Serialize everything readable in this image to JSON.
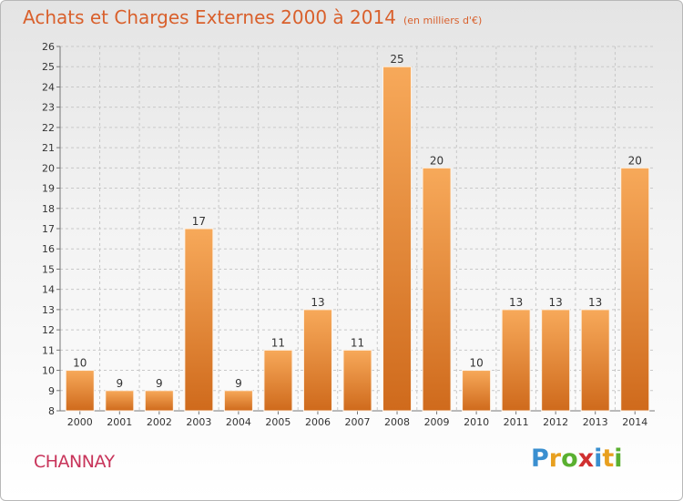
{
  "header": {
    "title": "Achats et Charges Externes 2000 à 2014",
    "unit_note": "(en milliers d'€)"
  },
  "place": "CHANNAY",
  "brand": {
    "letters": [
      "P",
      "r",
      "o",
      "x",
      "i",
      "t",
      "i"
    ],
    "colors": [
      "#3a8fd0",
      "#e8a020",
      "#5ab030",
      "#d03030",
      "#3a8fd0",
      "#e8a020",
      "#5ab030"
    ]
  },
  "colors": {
    "bar_light": "#f7a95a",
    "bar_dark": "#cf6a1c",
    "title": "#d9602c",
    "place": "#c8345a",
    "grid": "#c8c8c8"
  },
  "chart_data": {
    "type": "bar",
    "categories": [
      "2000",
      "2001",
      "2002",
      "2003",
      "2004",
      "2005",
      "2006",
      "2007",
      "2008",
      "2009",
      "2010",
      "2011",
      "2012",
      "2013",
      "2014"
    ],
    "values": [
      10,
      9,
      9,
      17,
      9,
      11,
      13,
      11,
      25,
      20,
      10,
      13,
      13,
      13,
      20
    ],
    "ylim": [
      8,
      26
    ],
    "yticks": [
      8,
      9,
      10,
      11,
      12,
      13,
      14,
      15,
      16,
      17,
      18,
      19,
      20,
      21,
      22,
      23,
      24,
      25,
      26
    ],
    "grid": true,
    "data_labels": true
  }
}
